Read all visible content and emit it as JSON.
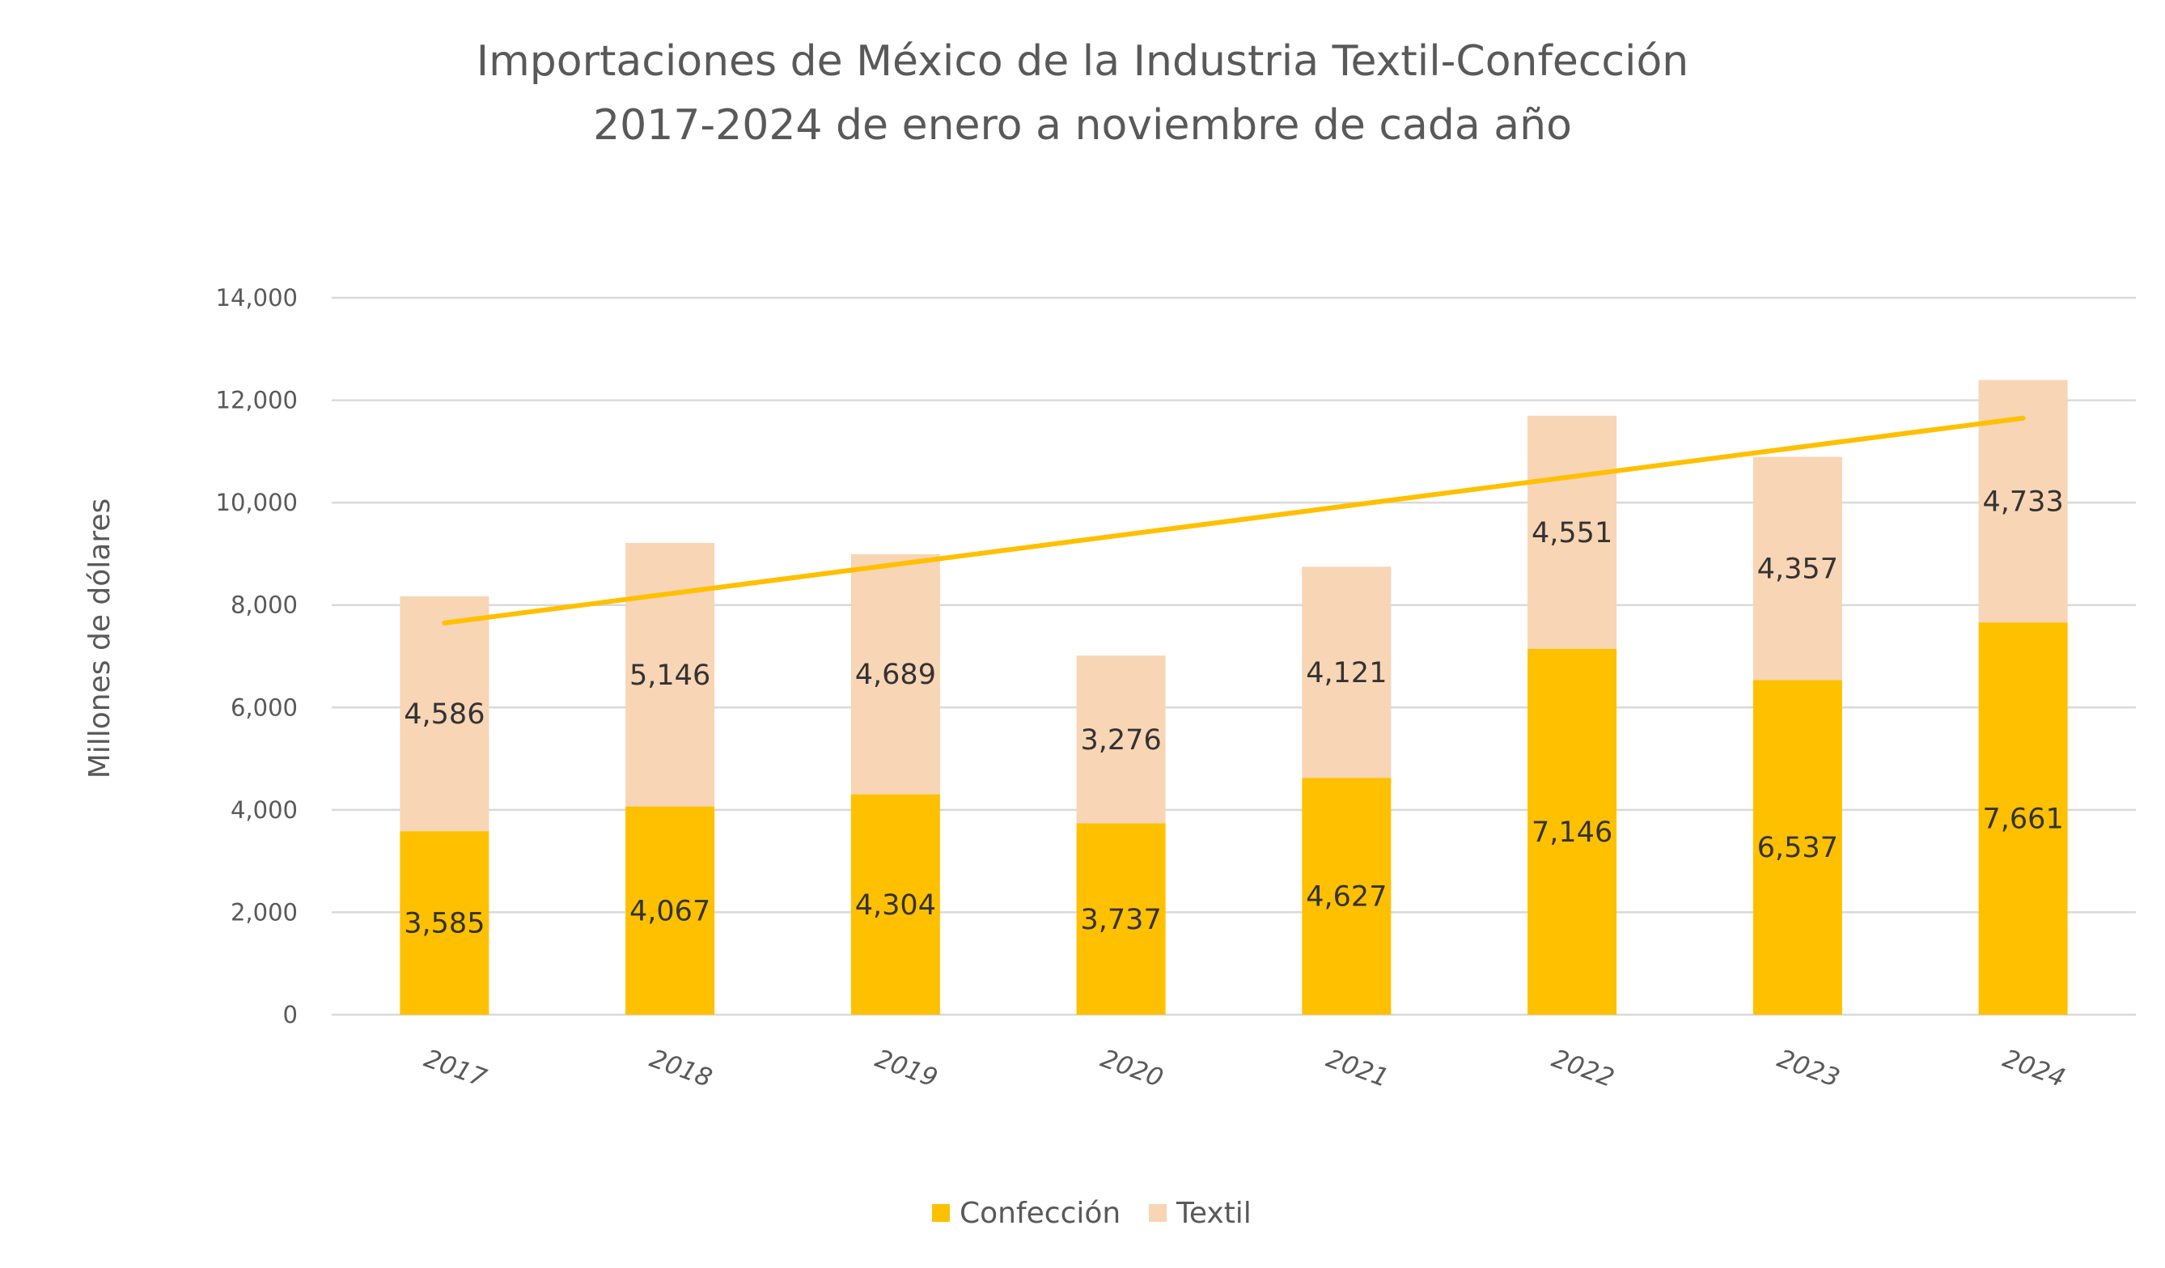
{
  "chart_data": {
    "type": "bar",
    "stacked": true,
    "title": "Importaciones de México de la Industria Textil-Confección",
    "subtitle": "2017-2024 de enero a noviembre de cada año",
    "xlabel": "",
    "ylabel": "Millones de dólares",
    "categories": [
      "2017",
      "2018",
      "2019",
      "2020",
      "2021",
      "2022",
      "2023",
      "2024"
    ],
    "series": [
      {
        "name": "Confección",
        "color": "#FFC000",
        "values": [
          3585,
          4067,
          4304,
          3737,
          4627,
          7146,
          6537,
          7661
        ],
        "labels": [
          "3,585",
          "4,067",
          "4,304",
          "3,737",
          "4,627",
          "7,146",
          "6,537",
          "7,661"
        ]
      },
      {
        "name": "Textil",
        "color": "#F8D5B5",
        "values": [
          4586,
          5146,
          4689,
          3276,
          4121,
          4551,
          4357,
          4733
        ],
        "labels": [
          "4,586",
          "5,146",
          "4,689",
          "3,276",
          "4,121",
          "4,551",
          "4,357",
          "4,733"
        ]
      }
    ],
    "trendline": {
      "type": "linear",
      "color": "#FFC000",
      "start": 7650,
      "end": 11650
    },
    "ylim": [
      0,
      14000
    ],
    "yticks": [
      0,
      2000,
      4000,
      6000,
      8000,
      10000,
      12000,
      14000
    ],
    "ytick_labels": [
      "0",
      "2,000",
      "4,000",
      "6,000",
      "8,000",
      "10,000",
      "12,000",
      "14,000"
    ],
    "grid": true,
    "gridline_color": "#D9D9D9",
    "legend_position": "bottom"
  }
}
